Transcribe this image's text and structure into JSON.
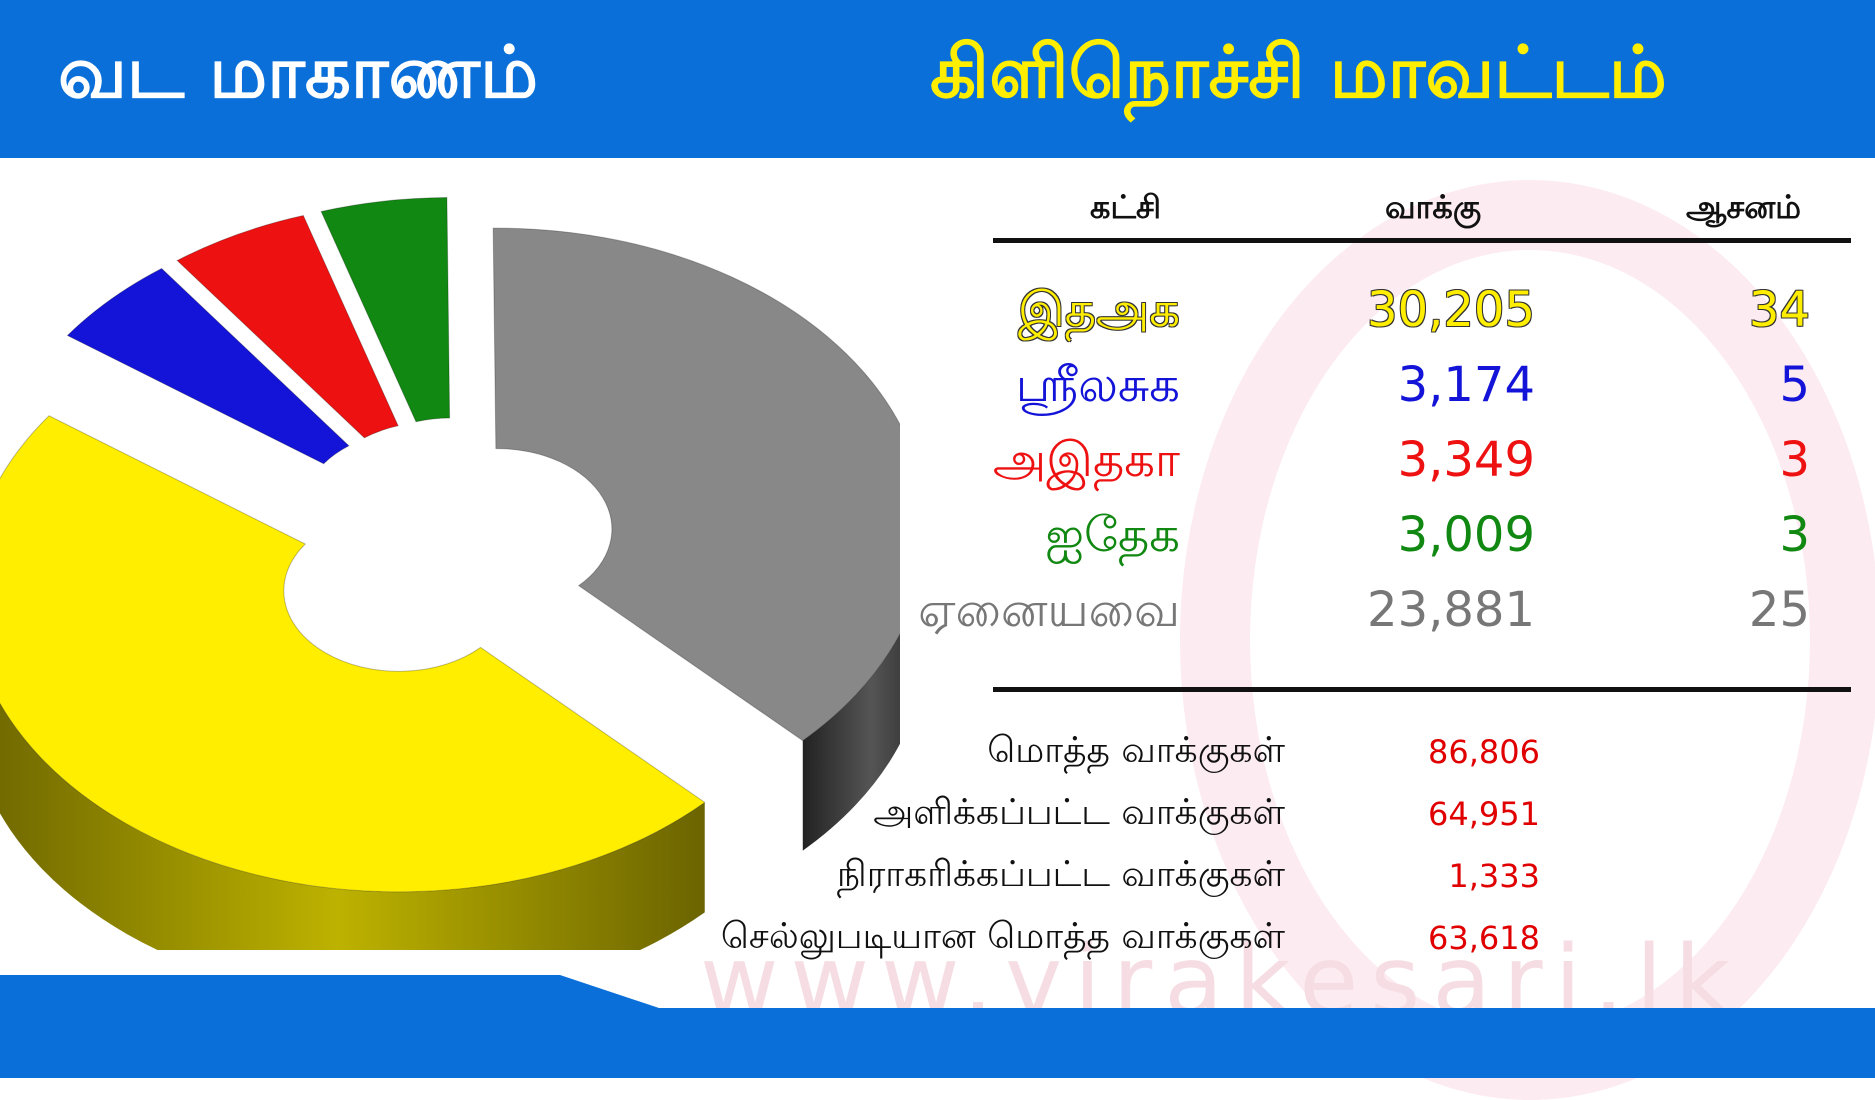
{
  "header": {
    "province": "வட மாகாணம்",
    "district": "கிளிநொச்சி மாவட்டம்"
  },
  "table": {
    "col_party": "கட்சி",
    "col_votes": "வாக்கு",
    "col_seats": "ஆசனம்",
    "rows": [
      {
        "party": "இதஅக",
        "votes": "30,205",
        "seats": "34",
        "color": "#ffee00"
      },
      {
        "party": "ஸ்ரீலசுக",
        "votes": "3,174",
        "seats": "5",
        "color": "#1414d8"
      },
      {
        "party": "அஇதகா",
        "votes": "3,349",
        "seats": "3",
        "color": "#ee1111"
      },
      {
        "party": "ஐதேக",
        "votes": "3,009",
        "seats": "3",
        "color": "#118811"
      },
      {
        "party": "ஏனையவை",
        "votes": "23,881",
        "seats": "25",
        "color": "#777777"
      }
    ]
  },
  "stats": [
    {
      "label": "மொத்த வாக்குகள்",
      "value": "86,806"
    },
    {
      "label": "அளிக்கப்பட்ட வாக்குகள்",
      "value": "64,951"
    },
    {
      "label": "நிராகரிக்கப்பட்ட வாக்குகள்",
      "value": "1,333"
    },
    {
      "label": "செல்லுபடியான மொத்த வாக்குகள்",
      "value": "63,618"
    }
  ],
  "watermark": "www.virakesari.lk",
  "chart_data": {
    "type": "pie",
    "categories": [
      "இதஅக",
      "ஸ்ரீலசுக",
      "அஇதகா",
      "ஐதேக",
      "ஏனையவை"
    ],
    "values": [
      30205,
      3174,
      3349,
      3009,
      23881
    ],
    "colors": [
      "#ffee00",
      "#1414d8",
      "#ee1111",
      "#118811",
      "#888888"
    ]
  }
}
